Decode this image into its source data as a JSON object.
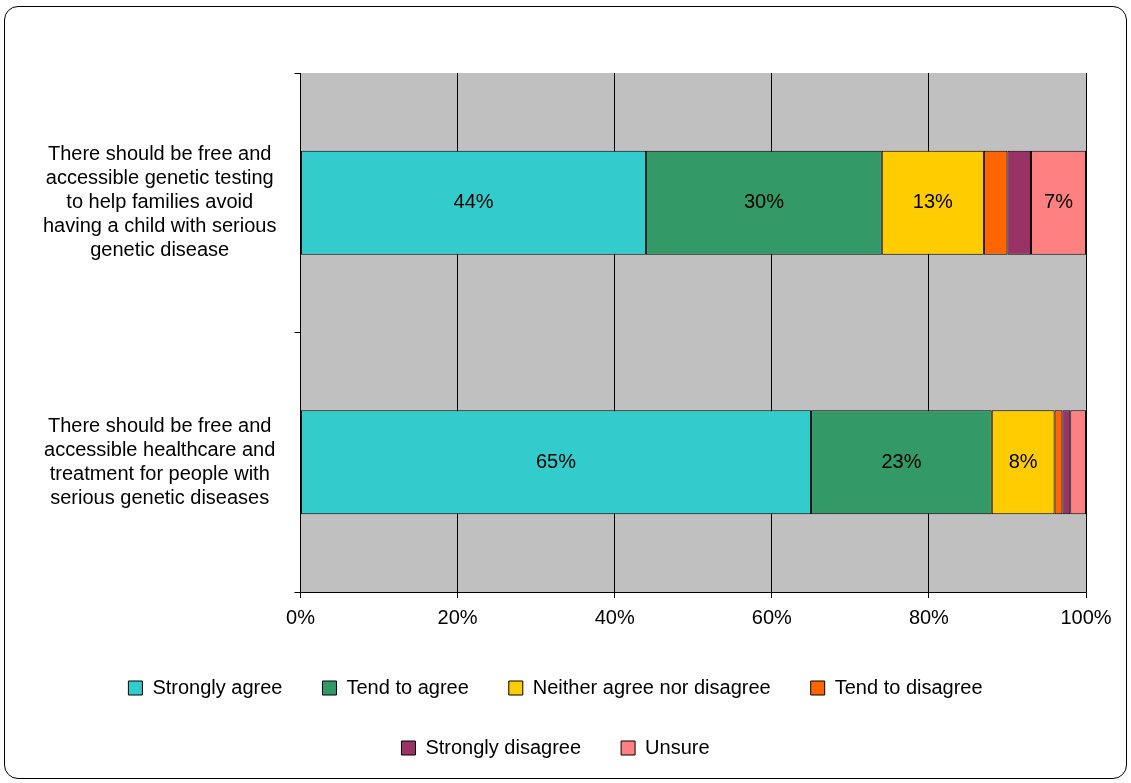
{
  "chart_data": {
    "type": "bar",
    "orientation": "horizontal",
    "stacked": true,
    "categories": [
      "There should be free and accessible genetic testing to help families avoid having a child with serious genetic disease",
      "There should be free and accessible healthcare and treatment for people with serious genetic diseases"
    ],
    "series": [
      {
        "name": "Strongly agree",
        "color": "#33cccc",
        "values": [
          44,
          65
        ],
        "value_labels": [
          "44%",
          "65%"
        ]
      },
      {
        "name": "Tend to agree",
        "color": "#339966",
        "values": [
          30,
          23
        ],
        "value_labels": [
          "30%",
          "23%"
        ]
      },
      {
        "name": "Neither agree nor disagree",
        "color": "#ffcc00",
        "values": [
          13,
          8
        ],
        "value_labels": [
          "13%",
          "8%"
        ]
      },
      {
        "name": "Tend to disagree",
        "color": "#ff6600",
        "values": [
          3,
          1
        ],
        "value_labels": [
          null,
          null
        ]
      },
      {
        "name": "Strongly disagree",
        "color": "#993366",
        "values": [
          3,
          1
        ],
        "value_labels": [
          null,
          null
        ]
      },
      {
        "name": "Unsure",
        "color": "#ff8080",
        "values": [
          7,
          2
        ],
        "value_labels": [
          "7%",
          null
        ]
      }
    ],
    "xlim": [
      0,
      100
    ],
    "xticks": [
      {
        "value": 0,
        "label": "0%"
      },
      {
        "value": 20,
        "label": "20%"
      },
      {
        "value": 40,
        "label": "40%"
      },
      {
        "value": 60,
        "label": "60%"
      },
      {
        "value": 80,
        "label": "80%"
      },
      {
        "value": 100,
        "label": "100%"
      }
    ],
    "grid": "x",
    "legend": "bottom"
  }
}
